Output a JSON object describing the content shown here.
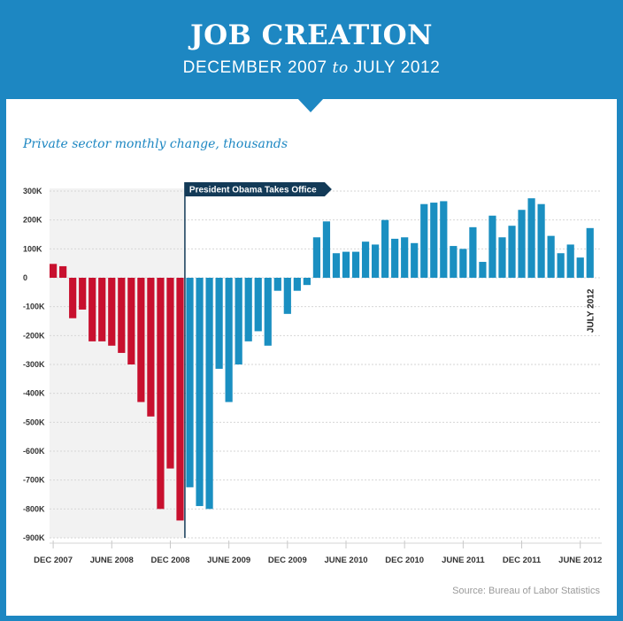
{
  "header": {
    "title": "JOB CREATION",
    "subtitle_start": "DECEMBER 2007",
    "subtitle_to": "to",
    "subtitle_end": "JULY 2012"
  },
  "chart_label": "Private sector monthly change, thousands",
  "source": "Source: Bureau of Labor Statistics",
  "colors": {
    "frame": "#1d87c2",
    "before": "#c8102e",
    "after": "#1a8fc1",
    "shade": "#f2f2f2",
    "flag": "#133a57"
  },
  "chart_data": {
    "type": "bar",
    "title": "JOB CREATION",
    "subtitle": "DECEMBER 2007 to JULY 2012",
    "ylabel": "Private sector monthly change, thousands",
    "ylim": [
      -900,
      300
    ],
    "y_ticks": [
      {
        "value": 300,
        "label": "300K"
      },
      {
        "value": 200,
        "label": "200K"
      },
      {
        "value": 100,
        "label": "100K"
      },
      {
        "value": 0,
        "label": "0"
      },
      {
        "value": -100,
        "label": "-100K"
      },
      {
        "value": -200,
        "label": "-200K"
      },
      {
        "value": -300,
        "label": "-300K"
      },
      {
        "value": -400,
        "label": "-400K"
      },
      {
        "value": -500,
        "label": "-500K"
      },
      {
        "value": -600,
        "label": "-600K"
      },
      {
        "value": -700,
        "label": "-700K"
      },
      {
        "value": -800,
        "label": "-800K"
      },
      {
        "value": -900,
        "label": "-900K"
      }
    ],
    "x_ticks": [
      {
        "index": 0,
        "label": "DEC 2007"
      },
      {
        "index": 6,
        "label": "JUNE 2008"
      },
      {
        "index": 12,
        "label": "DEC 2008"
      },
      {
        "index": 18,
        "label": "JUNE 2009"
      },
      {
        "index": 24,
        "label": "DEC 2009"
      },
      {
        "index": 30,
        "label": "JUNE 2010"
      },
      {
        "index": 36,
        "label": "DEC 2010"
      },
      {
        "index": 42,
        "label": "JUNE 2011"
      },
      {
        "index": 48,
        "label": "DEC 2011"
      },
      {
        "index": 54,
        "label": "JUNE 2012"
      }
    ],
    "values": [
      48,
      40,
      -140,
      -110,
      -220,
      -220,
      -235,
      -260,
      -300,
      -430,
      -480,
      -800,
      -660,
      -840,
      -725,
      -790,
      -800,
      -315,
      -430,
      -300,
      -220,
      -185,
      -235,
      -45,
      -125,
      -45,
      -25,
      140,
      195,
      85,
      90,
      90,
      125,
      115,
      200,
      135,
      140,
      120,
      255,
      260,
      265,
      110,
      100,
      175,
      55,
      215,
      140,
      180,
      235,
      275,
      255,
      145,
      85,
      115,
      70,
      172
    ],
    "split_index": 14,
    "annotation": "President Obama Takes Office",
    "end_label": "JULY 2012",
    "grid": true
  }
}
